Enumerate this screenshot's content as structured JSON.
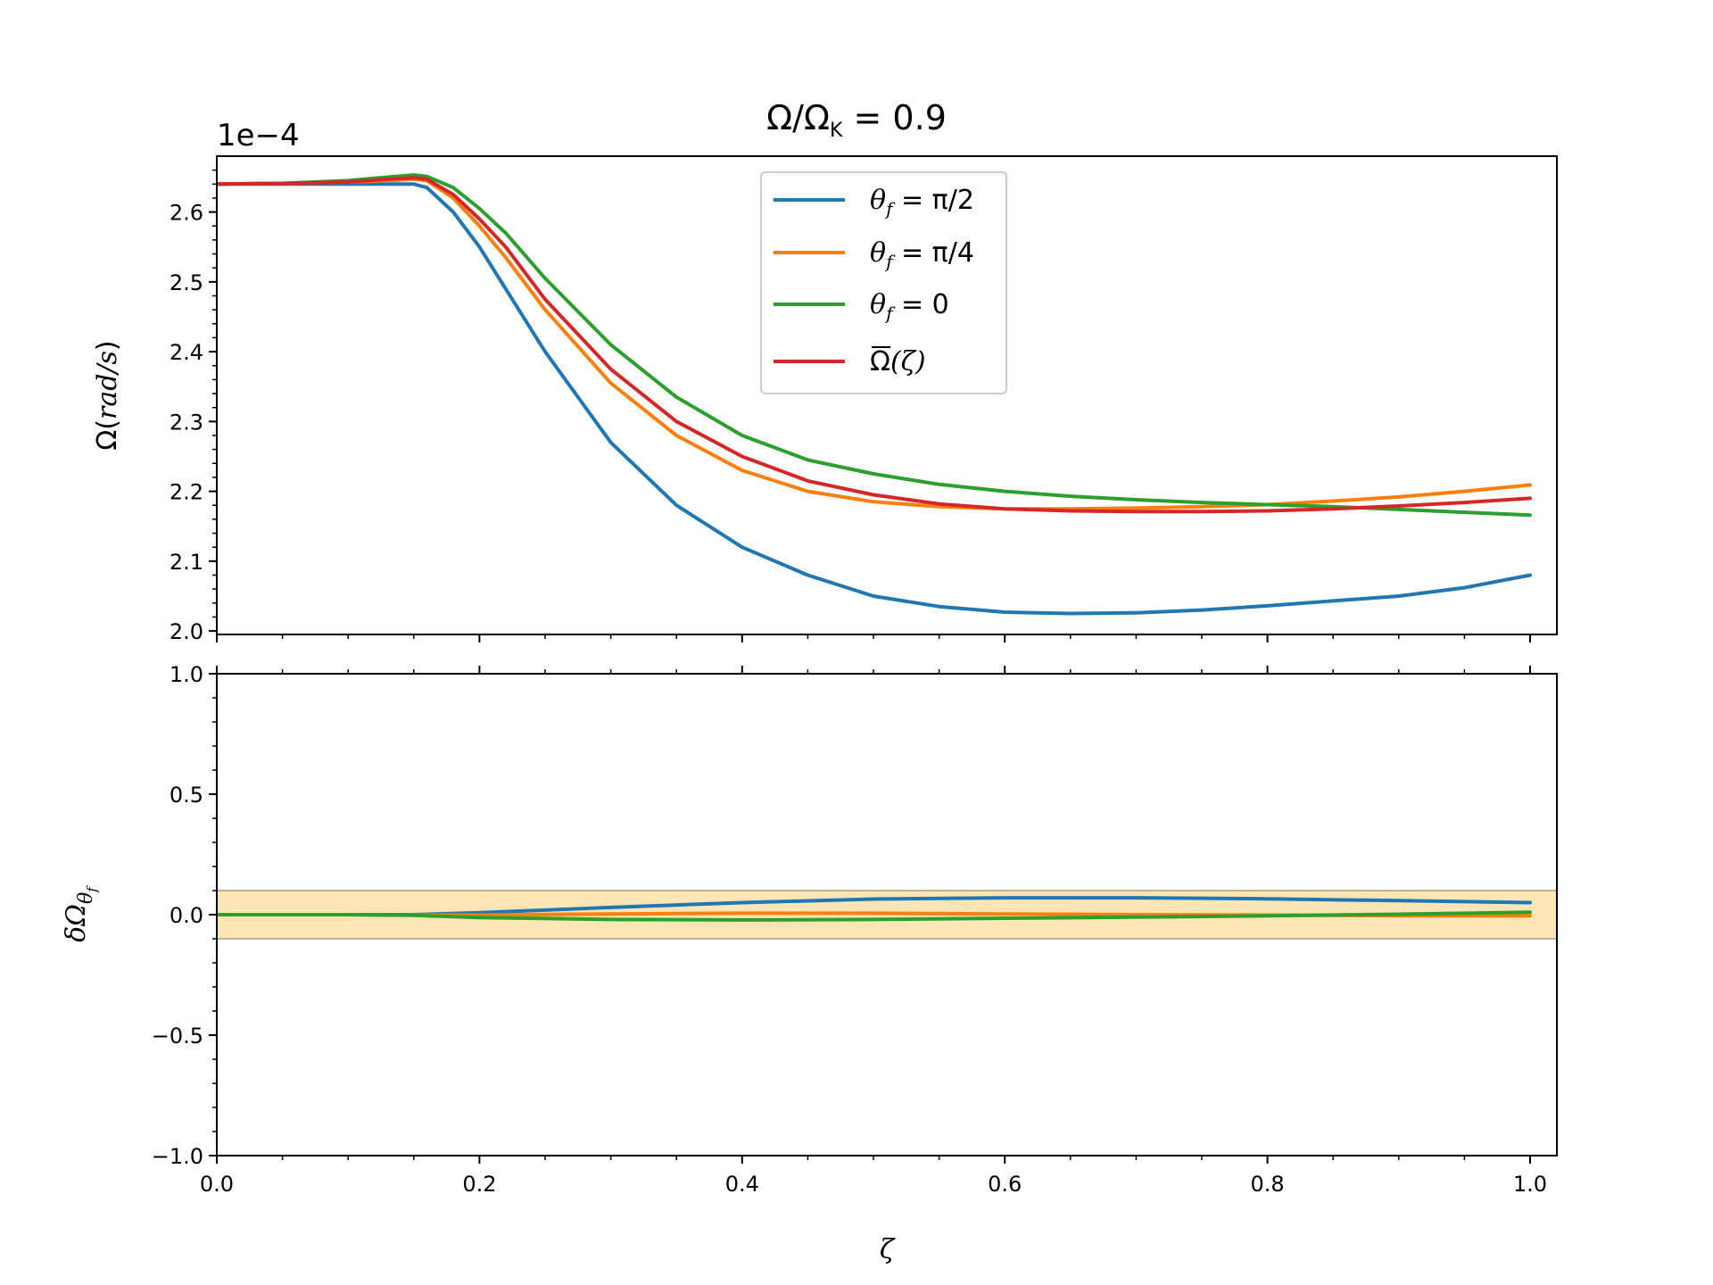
{
  "chart_data": [
    {
      "type": "line",
      "title_main": "Ω/Ω",
      "title_sub": "K",
      "title_value": " = 0.9",
      "offset_text": "1e−4",
      "ylabel": "Ω(rad/s)",
      "ylabel_parts": {
        "prefix": "Ω(",
        "unit": "rad/s",
        "suffix": ")"
      },
      "xlabel": "",
      "xlim": [
        0.0,
        1.0
      ],
      "ylim": [
        1.995,
        2.68
      ],
      "yticks": [
        2.0,
        2.1,
        2.2,
        2.3,
        2.4,
        2.5,
        2.6
      ],
      "ytick_labels": [
        "2.0",
        "2.1",
        "2.2",
        "2.3",
        "2.4",
        "2.5",
        "2.6"
      ],
      "legend_position": "top-center",
      "x": [
        0.0,
        0.05,
        0.1,
        0.13,
        0.15,
        0.16,
        0.18,
        0.2,
        0.22,
        0.25,
        0.3,
        0.35,
        0.4,
        0.45,
        0.5,
        0.55,
        0.6,
        0.65,
        0.7,
        0.75,
        0.8,
        0.85,
        0.9,
        0.95,
        1.0
      ],
      "series": [
        {
          "name": "θ_f = π/2",
          "legend_parts": [
            "θ",
            "f",
            " = π/2"
          ],
          "color": "#1f77b4",
          "values": [
            2.64,
            2.64,
            2.64,
            2.64,
            2.64,
            2.635,
            2.6,
            2.55,
            2.49,
            2.4,
            2.27,
            2.18,
            2.12,
            2.08,
            2.05,
            2.035,
            2.027,
            2.025,
            2.026,
            2.03,
            2.036,
            2.043,
            2.05,
            2.062,
            2.08
          ]
        },
        {
          "name": "θ_f = π/4",
          "legend_parts": [
            "θ",
            "f",
            " = π/4"
          ],
          "color": "#ff7f0e",
          "values": [
            2.64,
            2.641,
            2.643,
            2.645,
            2.647,
            2.645,
            2.62,
            2.58,
            2.535,
            2.46,
            2.355,
            2.28,
            2.23,
            2.2,
            2.185,
            2.178,
            2.175,
            2.175,
            2.176,
            2.178,
            2.181,
            2.186,
            2.192,
            2.2,
            2.209
          ]
        },
        {
          "name": "θ_f = 0",
          "legend_parts": [
            "θ",
            "f",
            " = 0"
          ],
          "color": "#2ca02c",
          "values": [
            2.64,
            2.641,
            2.645,
            2.65,
            2.653,
            2.651,
            2.635,
            2.605,
            2.57,
            2.505,
            2.41,
            2.335,
            2.28,
            2.245,
            2.225,
            2.21,
            2.2,
            2.193,
            2.188,
            2.184,
            2.181,
            2.178,
            2.174,
            2.17,
            2.166
          ]
        },
        {
          "name": "Ω̄(ζ)",
          "legend_parts": [
            "Ω",
            "",
            "(ζ)"
          ],
          "color": "#d62728",
          "values": [
            2.64,
            2.641,
            2.643,
            2.647,
            2.649,
            2.647,
            2.625,
            2.59,
            2.55,
            2.475,
            2.375,
            2.3,
            2.25,
            2.215,
            2.195,
            2.182,
            2.175,
            2.172,
            2.171,
            2.171,
            2.172,
            2.175,
            2.179,
            2.184,
            2.19
          ]
        }
      ]
    },
    {
      "type": "line",
      "xlabel": "ζ",
      "ylabel": "δΩ_θf",
      "ylabel_parts": {
        "prefix": "δΩ",
        "sub": "θ",
        "subsub": "f"
      },
      "xlim": [
        0.0,
        1.0
      ],
      "ylim": [
        -1.0,
        1.0
      ],
      "xticks": [
        0.0,
        0.2,
        0.4,
        0.6,
        0.8,
        1.0
      ],
      "xtick_labels": [
        "0.0",
        "0.2",
        "0.4",
        "0.6",
        "0.8",
        "1.0"
      ],
      "yticks": [
        -1.0,
        -0.5,
        0.0,
        0.5,
        1.0
      ],
      "ytick_labels": [
        "−1.0",
        "−0.5",
        "0.0",
        "0.5",
        "1.0"
      ],
      "band": {
        "lower": -0.1,
        "upper": 0.1,
        "fill_color": "#fde5b6",
        "edge_color": "#c8b48c"
      },
      "x": [
        0.0,
        0.1,
        0.15,
        0.2,
        0.3,
        0.4,
        0.5,
        0.6,
        0.7,
        0.8,
        0.9,
        1.0
      ],
      "series": [
        {
          "name": "θ_f = π/2",
          "color": "#1f77b4",
          "values": [
            0.0,
            0.0,
            0.0,
            0.008,
            0.03,
            0.05,
            0.065,
            0.07,
            0.07,
            0.066,
            0.058,
            0.05
          ]
        },
        {
          "name": "θ_f = π/4",
          "color": "#ff7f0e",
          "values": [
            0.0,
            0.0,
            -0.002,
            -0.002,
            0.003,
            0.006,
            0.006,
            0.003,
            0.0,
            -0.002,
            -0.004,
            -0.005
          ]
        },
        {
          "name": "θ_f = 0",
          "color": "#2ca02c",
          "values": [
            0.0,
            0.0,
            -0.003,
            -0.012,
            -0.02,
            -0.022,
            -0.02,
            -0.015,
            -0.01,
            -0.005,
            0.002,
            0.01
          ]
        }
      ]
    }
  ]
}
